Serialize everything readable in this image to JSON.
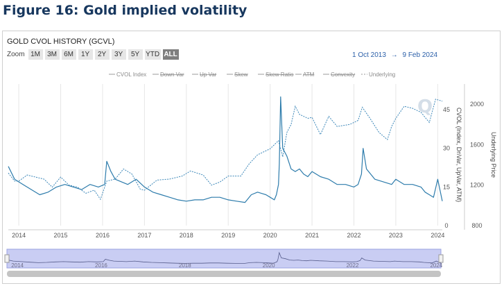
{
  "figure_title": "Figure 16: Gold implied volatility",
  "chart_title": "GOLD CVOL HISTORY (GCVL)",
  "zoom": {
    "label": "Zoom",
    "buttons": [
      "1M",
      "3M",
      "6M",
      "1Y",
      "2Y",
      "3Y",
      "5Y",
      "YTD",
      "ALL"
    ],
    "active": "ALL"
  },
  "date_range": {
    "from": "1 Oct 2013",
    "arrow": "→",
    "to": "9 Feb 2024"
  },
  "colors": {
    "cvol": "#2c7bab",
    "underlying": "#3a86b8",
    "navigator_fill": "#c9cdf3"
  },
  "chart_data": {
    "type": "line",
    "legend_position": "top-center",
    "legend": [
      "CVOL Index",
      "Down Var",
      "Up Var",
      "Skew",
      "Skew Ratio",
      "ATM",
      "Convexity",
      "Underlying"
    ],
    "legend_hidden": [
      "Down Var",
      "Up Var",
      "Skew",
      "Skew Ratio",
      "ATM",
      "Convexity"
    ],
    "x_ticks": [
      "2014",
      "2015",
      "2016",
      "2017",
      "2018",
      "2019",
      "2020",
      "2021",
      "2022",
      "2023",
      "2024"
    ],
    "xlim": [
      2013.75,
      2024.11
    ],
    "y_left": {
      "label": "CVOL (Index, DnVar, UpVar, ATM)",
      "ticks": [
        0,
        15,
        30,
        45
      ],
      "lim": [
        0,
        55
      ]
    },
    "y_right": {
      "label": "Underlying Price",
      "ticks": [
        800,
        1200,
        1600,
        2000
      ],
      "lim": [
        800,
        2200
      ]
    },
    "grid": "vertical",
    "series": [
      {
        "name": "CVOL Index",
        "axis": "left",
        "x": [
          2013.75,
          2013.9,
          2014.1,
          2014.3,
          2014.5,
          2014.7,
          2014.9,
          2015.1,
          2015.3,
          2015.5,
          2015.7,
          2015.9,
          2016.05,
          2016.1,
          2016.2,
          2016.3,
          2016.45,
          2016.6,
          2016.8,
          2017.0,
          2017.2,
          2017.4,
          2017.6,
          2017.8,
          2018.0,
          2018.2,
          2018.4,
          2018.6,
          2018.8,
          2019.0,
          2019.2,
          2019.4,
          2019.55,
          2019.7,
          2019.9,
          2020.0,
          2020.1,
          2020.15,
          2020.2,
          2020.22,
          2020.25,
          2020.3,
          2020.4,
          2020.5,
          2020.6,
          2020.7,
          2020.8,
          2020.9,
          2021.0,
          2021.2,
          2021.4,
          2021.6,
          2021.8,
          2022.0,
          2022.1,
          2022.18,
          2022.22,
          2022.3,
          2022.5,
          2022.7,
          2022.9,
          2023.0,
          2023.2,
          2023.4,
          2023.6,
          2023.7,
          2023.8,
          2023.9,
          2024.0,
          2024.11
        ],
        "values": [
          23,
          18,
          16,
          14,
          12,
          13,
          15,
          16,
          15,
          14,
          16,
          15,
          16,
          25,
          21,
          18,
          17,
          16,
          18,
          15,
          13,
          12,
          11,
          10,
          9.5,
          10,
          10,
          11,
          11,
          10,
          9.5,
          9,
          12,
          13,
          12,
          11,
          10,
          12,
          16,
          24,
          50,
          30,
          27,
          22,
          21,
          22,
          20,
          19,
          21,
          19,
          18,
          16,
          16,
          15,
          16,
          20,
          30,
          22,
          18,
          17,
          16,
          18,
          16,
          16,
          15,
          13,
          12,
          11,
          18,
          9.5
        ]
      },
      {
        "name": "Underlying",
        "axis": "right",
        "x": [
          2013.75,
          2013.9,
          2014.0,
          2014.2,
          2014.4,
          2014.6,
          2014.8,
          2015.0,
          2015.2,
          2015.4,
          2015.6,
          2015.8,
          2015.95,
          2016.1,
          2016.3,
          2016.5,
          2016.7,
          2016.9,
          2017.0,
          2017.3,
          2017.6,
          2017.9,
          2018.1,
          2018.4,
          2018.6,
          2018.8,
          2019.0,
          2019.3,
          2019.5,
          2019.7,
          2020.0,
          2020.2,
          2020.3,
          2020.4,
          2020.5,
          2020.6,
          2020.7,
          2020.9,
          2021.0,
          2021.2,
          2021.4,
          2021.6,
          2021.9,
          2022.1,
          2022.2,
          2022.4,
          2022.6,
          2022.8,
          2022.9,
          2023.0,
          2023.2,
          2023.4,
          2023.6,
          2023.8,
          2023.95,
          2024.11
        ],
        "values": [
          1320,
          1240,
          1240,
          1300,
          1280,
          1260,
          1180,
          1280,
          1200,
          1180,
          1120,
          1150,
          1060,
          1240,
          1260,
          1360,
          1310,
          1160,
          1150,
          1250,
          1260,
          1290,
          1340,
          1300,
          1200,
          1230,
          1290,
          1290,
          1410,
          1500,
          1560,
          1640,
          1480,
          1720,
          1800,
          1980,
          1900,
          1860,
          1870,
          1700,
          1880,
          1780,
          1800,
          1840,
          1970,
          1850,
          1720,
          1650,
          1780,
          1860,
          1980,
          1960,
          1920,
          1820,
          2050,
          2030
        ]
      }
    ]
  },
  "navigator": {
    "labels": [
      "2014",
      "2016",
      "2018",
      "2020",
      "2022",
      "2024"
    ]
  }
}
